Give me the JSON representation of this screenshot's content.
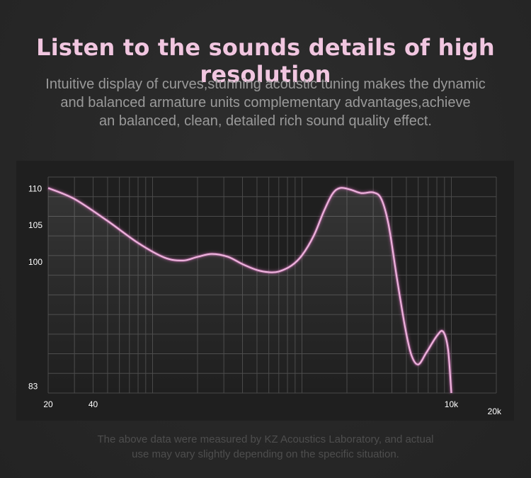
{
  "header": {
    "title": "Listen to the sounds details of high resolution",
    "subtitle_lines": [
      "Intuitive display of curves,stunning acoustic tuning makes the dynamic",
      "and balanced armature units complementary advantages,achieve",
      "an balanced, clean, detailed rich sound quality effect."
    ]
  },
  "footnote_lines": [
    "The above data were measured by KZ Acoustics Laboratory, and actual",
    "use may vary slightly depending on the specific situation."
  ],
  "colors": {
    "title": "#f1c6e0",
    "curve": "#f0b8e0",
    "curve_glow": "#d070b8",
    "grid": "#4a4a4a",
    "panel": "#1f1f1f"
  },
  "chart_data": {
    "type": "line",
    "title": "",
    "xlabel": "",
    "ylabel": "",
    "x_scale": "log",
    "xlim": [
      20,
      20000
    ],
    "ylim": [
      82,
      111.5
    ],
    "y_ticks": [
      {
        "value": 110,
        "label": "110"
      },
      {
        "value": 105,
        "label": "105"
      },
      {
        "value": 100,
        "label": "100"
      },
      {
        "value": 83,
        "label": "83"
      }
    ],
    "x_ticks": [
      {
        "value": 20,
        "label": "20"
      },
      {
        "value": 40,
        "label": "40"
      },
      {
        "value": 10000,
        "label": "10k"
      },
      {
        "value": 20000,
        "label": "20k"
      }
    ],
    "grid": true,
    "series": [
      {
        "points": [
          [
            20,
            110
          ],
          [
            30,
            108.5
          ],
          [
            50,
            105.5
          ],
          [
            80,
            102.5
          ],
          [
            120,
            100.5
          ],
          [
            160,
            100.1
          ],
          [
            200,
            100.6
          ],
          [
            250,
            101
          ],
          [
            320,
            100.6
          ],
          [
            400,
            99.6
          ],
          [
            500,
            98.8
          ],
          [
            600,
            98.5
          ],
          [
            700,
            98.6
          ],
          [
            850,
            99.4
          ],
          [
            1000,
            100.8
          ],
          [
            1200,
            103.5
          ],
          [
            1400,
            106.8
          ],
          [
            1600,
            109.2
          ],
          [
            1800,
            110
          ],
          [
            2100,
            109.8
          ],
          [
            2500,
            109.3
          ],
          [
            3000,
            109.4
          ],
          [
            3400,
            108.5
          ],
          [
            3800,
            105
          ],
          [
            4300,
            98
          ],
          [
            4900,
            91
          ],
          [
            5400,
            87.2
          ],
          [
            6000,
            85.9
          ],
          [
            6800,
            87.5
          ],
          [
            8000,
            89.8
          ],
          [
            8800,
            90.4
          ],
          [
            9500,
            88
          ],
          [
            10000,
            82
          ]
        ]
      }
    ]
  }
}
